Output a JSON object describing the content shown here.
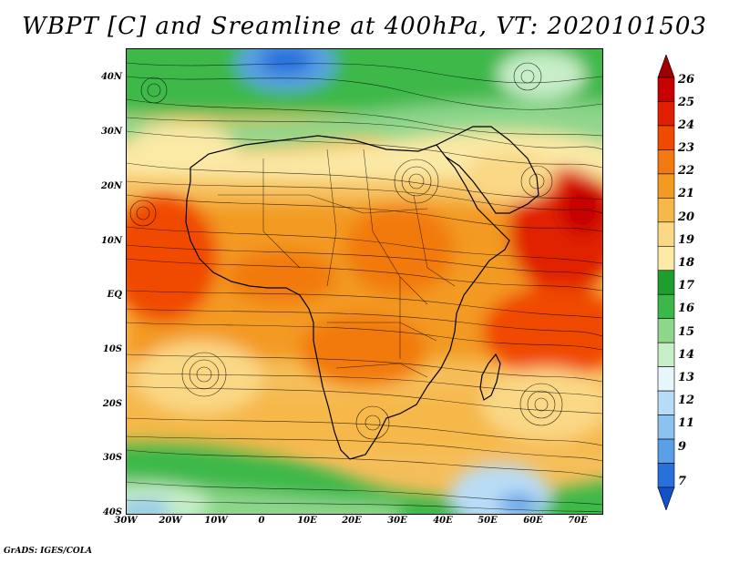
{
  "title": "WBPT [C] and Sreamline at 400hPa, VT: 2020101503",
  "credit": "GrADS: IGES/COLA",
  "map": {
    "lat_labels": [
      "40N",
      "30N",
      "20N",
      "10N",
      "EQ",
      "10S",
      "20S",
      "30S",
      "40S"
    ],
    "lon_labels": [
      "30W",
      "20W",
      "10W",
      "0",
      "10E",
      "20E",
      "30E",
      "40E",
      "50E",
      "60E",
      "70E"
    ]
  },
  "colorbar": {
    "levels": [
      "26",
      "25",
      "24",
      "23",
      "22",
      "21",
      "20",
      "19",
      "18",
      "17",
      "16",
      "15",
      "14",
      "13",
      "12",
      "11",
      "9",
      "7"
    ],
    "colors": [
      "#a00000",
      "#c80000",
      "#e02000",
      "#f04a00",
      "#f27a10",
      "#f39a20",
      "#f6b848",
      "#fad886",
      "#fbe9a6",
      "#1e9e2e",
      "#3cb84a",
      "#8ed68c",
      "#c8eec8",
      "#e6f6fa",
      "#b9dcf6",
      "#8cc2f0",
      "#5aa0e6",
      "#2870dc",
      "#1450c8"
    ]
  }
}
